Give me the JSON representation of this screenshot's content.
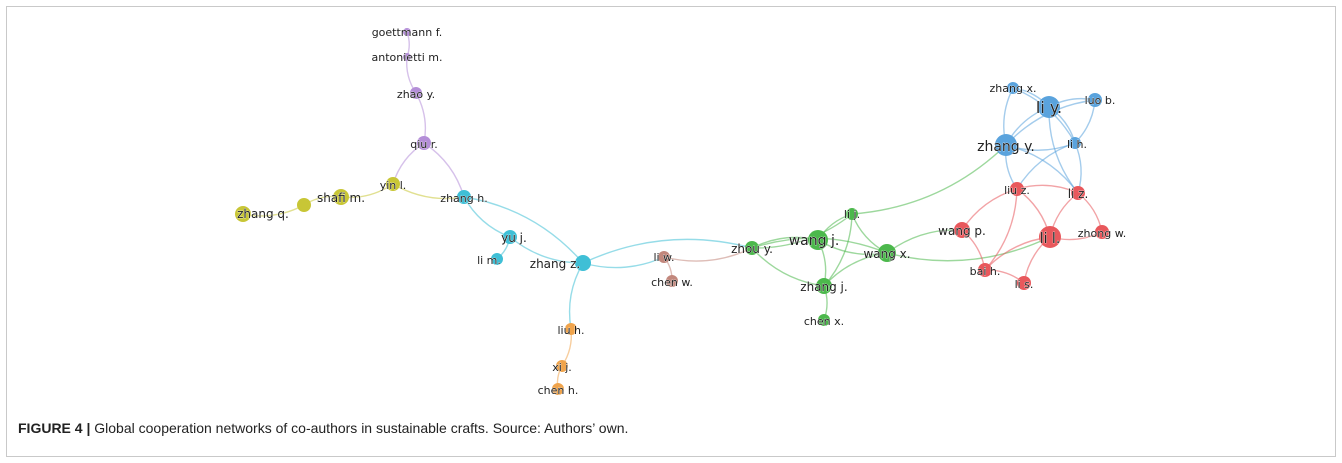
{
  "caption": {
    "figure_label": "FIGURE 4 |",
    "text": "Global cooperation networks of co-authors in sustainable crafts. Source: Authors’ own."
  },
  "clusters": {
    "purple": "#b48ed8",
    "yellow": "#c8c636",
    "cyan": "#3fbfd6",
    "brown": "#c2877c",
    "orange": "#f0a44c",
    "green": "#4cb84c",
    "blue": "#5aa3dd",
    "red": "#e8585c"
  },
  "nodes": [
    {
      "id": "goettmann",
      "label": "goettmann f.",
      "cluster": "purple"
    },
    {
      "id": "antonietti",
      "label": "antonietti m.",
      "cluster": "purple"
    },
    {
      "id": "zhaoy",
      "label": "zhao y.",
      "cluster": "purple"
    },
    {
      "id": "qiur",
      "label": "qiu r.",
      "cluster": "purple"
    },
    {
      "id": "yinl",
      "label": "yin l.",
      "cluster": "yellow"
    },
    {
      "id": "shafim",
      "label": "shafi m.",
      "cluster": "yellow"
    },
    {
      "id": "yellowdot",
      "label": "",
      "cluster": "yellow"
    },
    {
      "id": "zhangq",
      "label": "zhang q.",
      "cluster": "yellow"
    },
    {
      "id": "zhangh",
      "label": "zhang h.",
      "cluster": "cyan"
    },
    {
      "id": "yuj",
      "label": "yu j.",
      "cluster": "cyan"
    },
    {
      "id": "lim",
      "label": "li m.",
      "cluster": "cyan"
    },
    {
      "id": "zhangz",
      "label": "zhang z.",
      "cluster": "cyan"
    },
    {
      "id": "liw",
      "label": "li w.",
      "cluster": "brown"
    },
    {
      "id": "chenw",
      "label": "chen w.",
      "cluster": "brown"
    },
    {
      "id": "liuh",
      "label": "liu h.",
      "cluster": "orange"
    },
    {
      "id": "xij",
      "label": "xi j.",
      "cluster": "orange"
    },
    {
      "id": "chenh",
      "label": "chen h.",
      "cluster": "orange"
    },
    {
      "id": "zhouy",
      "label": "zhou y.",
      "cluster": "green"
    },
    {
      "id": "wangj",
      "label": "wang j.",
      "cluster": "green"
    },
    {
      "id": "lij",
      "label": "li j.",
      "cluster": "green"
    },
    {
      "id": "wangx",
      "label": "wang x.",
      "cluster": "green"
    },
    {
      "id": "zhangj",
      "label": "zhang j.",
      "cluster": "green"
    },
    {
      "id": "chenx",
      "label": "chen x.",
      "cluster": "green"
    },
    {
      "id": "zhangx",
      "label": "zhang x.",
      "cluster": "blue"
    },
    {
      "id": "liy",
      "label": "li y.",
      "cluster": "blue"
    },
    {
      "id": "luob",
      "label": "luo b.",
      "cluster": "blue"
    },
    {
      "id": "zhangy",
      "label": "zhang y.",
      "cluster": "blue"
    },
    {
      "id": "lih",
      "label": "li h.",
      "cluster": "blue"
    },
    {
      "id": "liuz",
      "label": "liu z.",
      "cluster": "red"
    },
    {
      "id": "liz",
      "label": "li z.",
      "cluster": "red"
    },
    {
      "id": "wangp",
      "label": "wang p.",
      "cluster": "red"
    },
    {
      "id": "lil",
      "label": "li l.",
      "cluster": "red"
    },
    {
      "id": "zhongw",
      "label": "zhong w.",
      "cluster": "red"
    },
    {
      "id": "baih",
      "label": "bai h.",
      "cluster": "red"
    },
    {
      "id": "lis",
      "label": "li s.",
      "cluster": "red"
    }
  ],
  "edges": [
    [
      "goettmann",
      "antonietti"
    ],
    [
      "antonietti",
      "zhaoy"
    ],
    [
      "zhaoy",
      "qiur"
    ],
    [
      "qiur",
      "yinl"
    ],
    [
      "qiur",
      "zhangh"
    ],
    [
      "yinl",
      "zhangh"
    ],
    [
      "yinl",
      "shafim"
    ],
    [
      "shafim",
      "yellowdot"
    ],
    [
      "yellowdot",
      "zhangq"
    ],
    [
      "zhangh",
      "yuj"
    ],
    [
      "yuj",
      "lim"
    ],
    [
      "yuj",
      "zhangz"
    ],
    [
      "zhangh",
      "zhangz"
    ],
    [
      "zhangz",
      "liw"
    ],
    [
      "zhangz",
      "zhouy"
    ],
    [
      "zhangz",
      "liuh"
    ],
    [
      "liw",
      "chenw"
    ],
    [
      "liw",
      "zhouy"
    ],
    [
      "liuh",
      "xij"
    ],
    [
      "xij",
      "chenh"
    ],
    [
      "zhouy",
      "wangj"
    ],
    [
      "zhouy",
      "lij"
    ],
    [
      "zhouy",
      "wangx"
    ],
    [
      "zhouy",
      "zhangj"
    ],
    [
      "wangj",
      "lij"
    ],
    [
      "wangj",
      "wangx"
    ],
    [
      "wangj",
      "zhangj"
    ],
    [
      "lij",
      "wangx"
    ],
    [
      "lij",
      "zhangj"
    ],
    [
      "wangx",
      "zhangj"
    ],
    [
      "zhangj",
      "chenx"
    ],
    [
      "lij",
      "zhangy"
    ],
    [
      "wangx",
      "wangp"
    ],
    [
      "wangx",
      "lil"
    ],
    [
      "zhangx",
      "liy"
    ],
    [
      "zhangx",
      "zhangy"
    ],
    [
      "liy",
      "luob"
    ],
    [
      "liy",
      "zhangy"
    ],
    [
      "liy",
      "lih"
    ],
    [
      "zhangy",
      "lih"
    ],
    [
      "luob",
      "lih"
    ],
    [
      "luob",
      "zhangy"
    ],
    [
      "zhangx",
      "lih"
    ],
    [
      "zhangy",
      "liuz"
    ],
    [
      "zhangy",
      "liz"
    ],
    [
      "lih",
      "liuz"
    ],
    [
      "lih",
      "liz"
    ],
    [
      "liy",
      "liz"
    ],
    [
      "liuz",
      "liz"
    ],
    [
      "liuz",
      "wangp"
    ],
    [
      "liuz",
      "lil"
    ],
    [
      "liz",
      "lil"
    ],
    [
      "liz",
      "zhongw"
    ],
    [
      "lil",
      "zhongw"
    ],
    [
      "wangp",
      "baih"
    ],
    [
      "lil",
      "baih"
    ],
    [
      "baih",
      "lis"
    ],
    [
      "lil",
      "lis"
    ],
    [
      "liuz",
      "baih"
    ]
  ]
}
